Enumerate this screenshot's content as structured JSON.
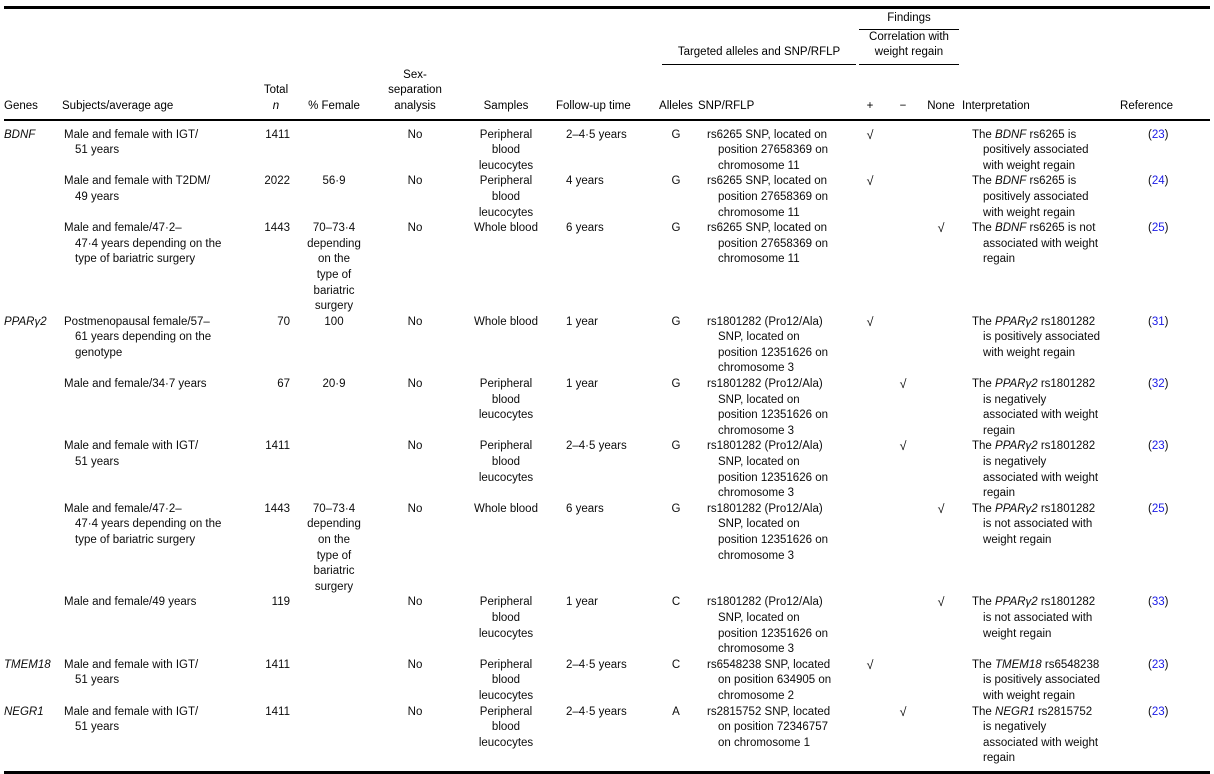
{
  "table": {
    "check_glyph": "√",
    "reference_color": "#1a1ae6",
    "header": {
      "findings": "Findings",
      "correlation": "Correlation with weight regain",
      "targeted": "Targeted alleles and SNP/RFLP",
      "cols": {
        "genes": "Genes",
        "subjects": "Subjects/average age",
        "total": "Total",
        "total_n": "n",
        "female": "% Female",
        "sex_separation": "Sex-\nseparation\nanalysis",
        "samples": "Samples",
        "followup": "Follow-up time",
        "alleles": "Alleles",
        "snp": "SNP/RFLP",
        "plus": "+",
        "minus": "−",
        "none": "None",
        "interpretation": "Interpretation",
        "reference": "Reference"
      }
    },
    "rows": [
      {
        "gene": "BDNF",
        "subjects": "Male and female with IGT/\n51 years",
        "n": "1411",
        "female": "",
        "sex_separation": "No",
        "samples": "Peripheral\nblood\nleucocytes",
        "followup": "2–4·5 years",
        "allele": "G",
        "snp": "rs6265 SNP, located on\nposition 27658369 on\nchromosome 11",
        "finding": "plus",
        "interp": {
          "lead": "The",
          "gene": "BDNF",
          "rest": "rs6265 is\npositively associated\nwith weight regain"
        },
        "ref": "23"
      },
      {
        "gene": "",
        "subjects": "Male and female with T2DM/\n49 years",
        "n": "2022",
        "female": "56·9",
        "sex_separation": "No",
        "samples": "Peripheral\nblood\nleucocytes",
        "followup": "4 years",
        "allele": "G",
        "snp": "rs6265 SNP, located on\nposition 27658369 on\nchromosome 11",
        "finding": "plus",
        "interp": {
          "lead": "The",
          "gene": "BDNF",
          "rest": "rs6265 is\npositively associated\nwith weight regain"
        },
        "ref": "24"
      },
      {
        "gene": "",
        "subjects": "Male and female/47·2–\n47·4 years depending on the\ntype of bariatric surgery",
        "n": "1443",
        "female": "70–73·4\ndepending\non the\ntype of\nbariatric\nsurgery",
        "sex_separation": "No",
        "samples": "Whole blood",
        "followup": "6 years",
        "allele": "G",
        "snp": "rs6265 SNP, located on\nposition 27658369 on\nchromosome 11",
        "finding": "none",
        "interp": {
          "lead": "The",
          "gene": "BDNF",
          "rest": "rs6265 is not\nassociated with weight\nregain"
        },
        "ref": "25"
      },
      {
        "gene": "PPARγ2",
        "subjects": "Postmenopausal female/57–\n61 years depending on the\ngenotype",
        "n": "70",
        "female": "100",
        "sex_separation": "No",
        "samples": "Whole blood",
        "followup": "1 year",
        "allele": "G",
        "snp": "rs1801282 (Pro12/Ala)\nSNP, located on\nposition 12351626 on\nchromosome 3",
        "finding": "plus",
        "interp": {
          "lead": "The",
          "gene": "PPARγ2",
          "rest": "rs1801282\nis positively associated\nwith weight regain"
        },
        "ref": "31"
      },
      {
        "gene": "",
        "subjects": "Male and female/34·7 years",
        "n": "67",
        "female": "20·9",
        "sex_separation": "No",
        "samples": "Peripheral\nblood\nleucocytes",
        "followup": "1 year",
        "allele": "G",
        "snp": "rs1801282 (Pro12/Ala)\nSNP, located on\nposition 12351626 on\nchromosome 3",
        "finding": "minus",
        "interp": {
          "lead": "The",
          "gene": "PPARγ2",
          "rest": "rs1801282\nis negatively\nassociated with weight\nregain"
        },
        "ref": "32"
      },
      {
        "gene": "",
        "subjects": "Male and female with IGT/\n51 years",
        "n": "1411",
        "female": "",
        "sex_separation": "No",
        "samples": "Peripheral\nblood\nleucocytes",
        "followup": "2–4·5 years",
        "allele": "G",
        "snp": "rs1801282 (Pro12/Ala)\nSNP, located on\nposition 12351626 on\nchromosome 3",
        "finding": "minus",
        "interp": {
          "lead": "The",
          "gene": "PPARγ2",
          "rest": "rs1801282\nis negatively\nassociated with weight\nregain"
        },
        "ref": "23"
      },
      {
        "gene": "",
        "subjects": "Male and female/47·2–\n47·4 years depending on the\ntype of bariatric surgery",
        "n": "1443",
        "female": "70–73·4\ndepending\non the\ntype of\nbariatric\nsurgery",
        "sex_separation": "No",
        "samples": "Whole blood",
        "followup": "6 years",
        "allele": "G",
        "snp": "rs1801282 (Pro12/Ala)\nSNP, located on\nposition 12351626 on\nchromosome 3",
        "finding": "none",
        "interp": {
          "lead": "The",
          "gene": "PPARγ2",
          "rest": "rs1801282\nis not associated with\nweight regain"
        },
        "ref": "25"
      },
      {
        "gene": "",
        "subjects": "Male and female/49 years",
        "n": "119",
        "female": "",
        "sex_separation": "No",
        "samples": "Peripheral\nblood\nleucocytes",
        "followup": "1 year",
        "allele": "C",
        "snp": "rs1801282 (Pro12/Ala)\nSNP, located on\nposition 12351626 on\nchromosome 3",
        "finding": "none",
        "interp": {
          "lead": "The",
          "gene": "PPARγ2",
          "rest": "rs1801282\nis not associated with\nweight regain"
        },
        "ref": "33"
      },
      {
        "gene": "TMEM18",
        "subjects": "Male and female with IGT/\n51 years",
        "n": "1411",
        "female": "",
        "sex_separation": "No",
        "samples": "Peripheral\nblood\nleucocytes",
        "followup": "2–4·5 years",
        "allele": "C",
        "snp": "rs6548238 SNP, located\non position 634905 on\nchromosome 2",
        "finding": "plus",
        "interp": {
          "lead": "The",
          "gene": "TMEM18",
          "rest": "rs6548238\nis positively associated\nwith weight regain"
        },
        "ref": "23"
      },
      {
        "gene": "NEGR1",
        "subjects": "Male and female with IGT/\n51 years",
        "n": "1411",
        "female": "",
        "sex_separation": "No",
        "samples": "Peripheral\nblood\nleucocytes",
        "followup": "2–4·5 years",
        "allele": "A",
        "snp": "rs2815752 SNP, located\non position 72346757\non chromosome 1",
        "finding": "minus",
        "interp": {
          "lead": "The",
          "gene": "NEGR1",
          "rest": "rs2815752\nis negatively\nassociated with weight\nregain"
        },
        "ref": "23"
      }
    ]
  }
}
